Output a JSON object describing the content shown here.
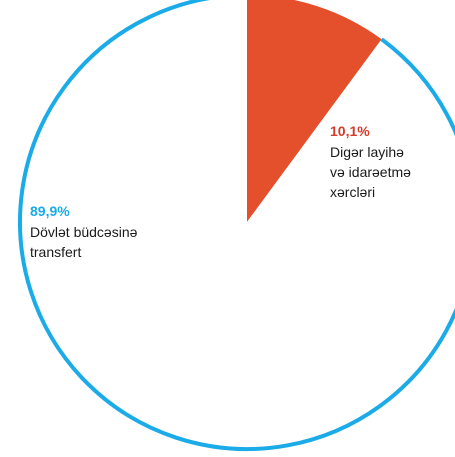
{
  "chart_data": {
    "type": "pie",
    "slices": [
      {
        "percent_label": "10,1%",
        "label_lines": [
          "Digər layihə",
          "və idarəetmə",
          "xərcləri"
        ],
        "value": 10.1,
        "color": "#E4502B"
      },
      {
        "percent_label": "89,9%",
        "label_lines": [
          "Dövlət büdcəsinə",
          "transfert"
        ],
        "value": 89.9,
        "color": "#FFFFFF",
        "outline_color": "#1AABE8"
      }
    ]
  }
}
